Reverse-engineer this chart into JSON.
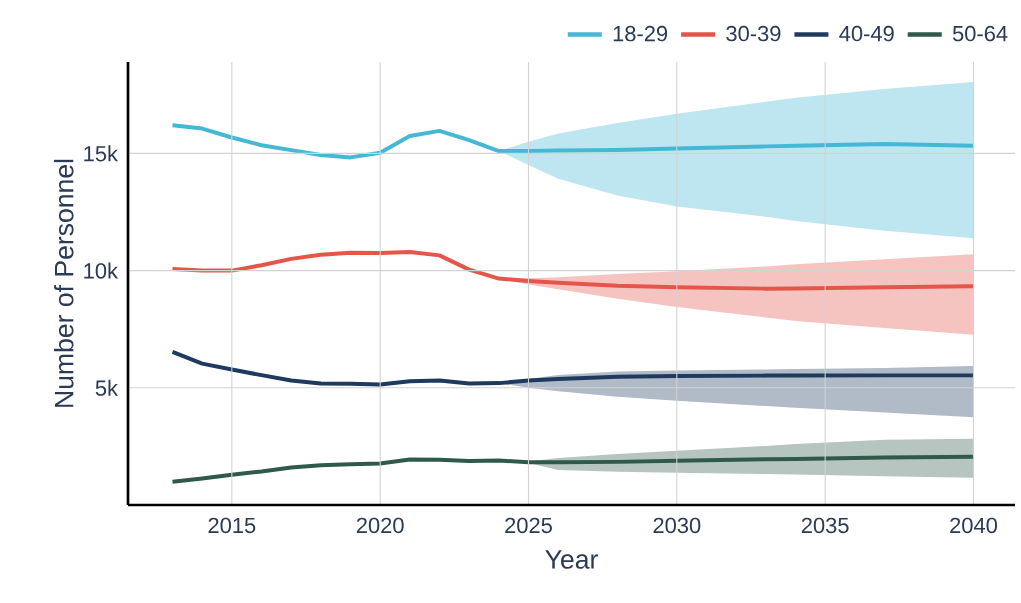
{
  "chart_data": {
    "type": "line",
    "xlabel": "Year",
    "ylabel": "Number of Personnel",
    "x": [
      2013,
      2014,
      2015,
      2016,
      2017,
      2018,
      2019,
      2020,
      2021,
      2022,
      2023,
      2024,
      2025,
      2026,
      2028,
      2030,
      2033,
      2034,
      2037,
      2040
    ],
    "series": [
      {
        "name": "18-29",
        "color": "#45b8d5",
        "values": [
          16200,
          16060,
          15680,
          15350,
          15140,
          14930,
          14830,
          15030,
          15740,
          15960,
          15570,
          15100,
          15100,
          15120,
          15150,
          15210,
          15300,
          15330,
          15400,
          15330
        ],
        "upper": [
          null,
          null,
          null,
          null,
          null,
          null,
          null,
          null,
          null,
          null,
          null,
          15100,
          15500,
          15850,
          16300,
          16690,
          17200,
          17380,
          17750,
          18050
        ],
        "lower": [
          null,
          null,
          null,
          null,
          null,
          null,
          null,
          null,
          null,
          null,
          null,
          15100,
          14510,
          13920,
          13200,
          12740,
          12300,
          12120,
          11700,
          11380
        ]
      },
      {
        "name": "30-39",
        "color": "#e5564a",
        "values": [
          10070,
          10000,
          10000,
          10230,
          10500,
          10680,
          10760,
          10750,
          10790,
          10650,
          10040,
          9660,
          9560,
          9480,
          9350,
          9290,
          9230,
          9240,
          9290,
          9330
        ],
        "upper": [
          null,
          null,
          null,
          null,
          null,
          null,
          null,
          null,
          null,
          null,
          null,
          9660,
          9670,
          9720,
          9850,
          9970,
          10180,
          10270,
          10480,
          10700
        ],
        "lower": [
          null,
          null,
          null,
          null,
          null,
          null,
          null,
          null,
          null,
          null,
          null,
          9660,
          9410,
          9200,
          8800,
          8450,
          8000,
          7850,
          7550,
          7260
        ]
      },
      {
        "name": "40-49",
        "color": "#1f3a5f",
        "values": [
          6530,
          6030,
          5780,
          5540,
          5310,
          5180,
          5170,
          5140,
          5280,
          5310,
          5180,
          5200,
          5310,
          5380,
          5470,
          5500,
          5520,
          5520,
          5530,
          5530
        ],
        "upper": [
          null,
          null,
          null,
          null,
          null,
          null,
          null,
          null,
          null,
          null,
          null,
          5200,
          5380,
          5550,
          5700,
          5740,
          5780,
          5800,
          5850,
          5930
        ],
        "lower": [
          null,
          null,
          null,
          null,
          null,
          null,
          null,
          null,
          null,
          null,
          null,
          5200,
          5000,
          4850,
          4620,
          4450,
          4220,
          4150,
          3950,
          3740
        ]
      },
      {
        "name": "50-64",
        "color": "#2f5a4a",
        "values": [
          990,
          1130,
          1290,
          1430,
          1600,
          1700,
          1740,
          1770,
          1940,
          1930,
          1880,
          1900,
          1820,
          1820,
          1840,
          1890,
          1950,
          1960,
          2030,
          2060
        ],
        "upper": [
          null,
          null,
          null,
          null,
          null,
          null,
          null,
          null,
          null,
          null,
          null,
          1900,
          1860,
          2000,
          2180,
          2310,
          2520,
          2600,
          2780,
          2830
        ],
        "lower": [
          null,
          null,
          null,
          null,
          null,
          null,
          null,
          null,
          null,
          null,
          null,
          1900,
          1790,
          1490,
          1420,
          1380,
          1320,
          1300,
          1230,
          1160
        ]
      }
    ],
    "xlim": [
      2011.5,
      2041.4
    ],
    "ylim": [
      0,
      18900
    ],
    "xticks": [
      2015,
      2020,
      2025,
      2030,
      2035,
      2040
    ],
    "yticks": [
      {
        "value": 5000,
        "label": "5k"
      },
      {
        "value": 10000,
        "label": "10k"
      },
      {
        "value": 15000,
        "label": "15k"
      }
    ],
    "grid": true,
    "legend": "top right"
  }
}
